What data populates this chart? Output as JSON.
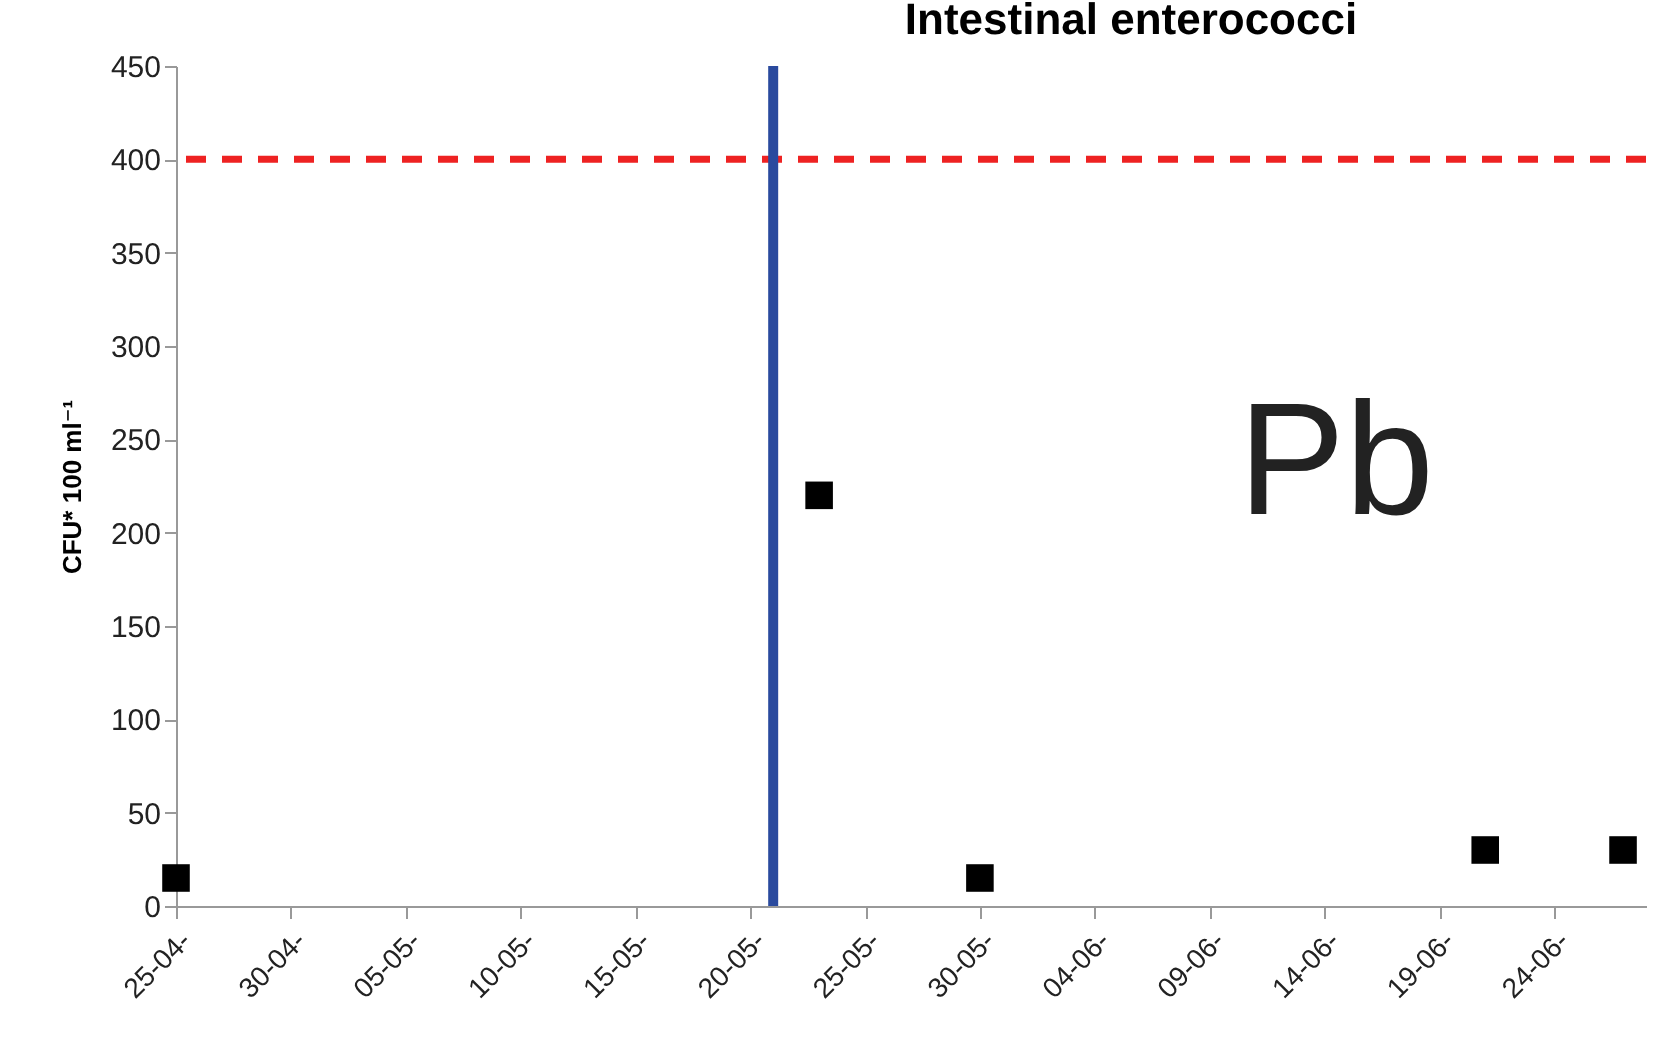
{
  "chart_data": {
    "type": "scatter",
    "title": "Intestinal enterococci",
    "ylabel": "CFU* 100 ml⁻¹",
    "annotations": [
      "Pb"
    ],
    "x": [
      "--04-25",
      "--05-23",
      "--05-30",
      "--06-21",
      "--06-27"
    ],
    "series": [
      {
        "color": "#000000",
        "values": [
          15,
          220,
          15,
          30,
          30
        ]
      }
    ],
    "marker": "square",
    "xlim": [
      "--04-25",
      "--06-28"
    ],
    "xticks": [
      {
        "value": "--04-25",
        "label": "25-04-"
      },
      {
        "value": "--04-30",
        "label": "30-04-"
      },
      {
        "value": "--05-05",
        "label": "05-05-"
      },
      {
        "value": "--05-10",
        "label": "10-05-"
      },
      {
        "value": "--05-15",
        "label": "15-05-"
      },
      {
        "value": "--05-20",
        "label": "20-05-"
      },
      {
        "value": "--05-25",
        "label": "25-05-"
      },
      {
        "value": "--05-30",
        "label": "30-05-"
      },
      {
        "value": "--06-04",
        "label": "04-06-"
      },
      {
        "value": "--06-09",
        "label": "09-06-"
      },
      {
        "value": "--06-14",
        "label": "14-06-"
      },
      {
        "value": "--06-19",
        "label": "19-06-"
      },
      {
        "value": "--06-24",
        "label": "24-06-"
      }
    ],
    "ylim": [
      0,
      450
    ],
    "yticks": [
      0,
      50,
      100,
      150,
      200,
      250,
      300,
      350,
      400,
      450
    ],
    "ref_lines": [
      {
        "axis": "y",
        "value": 400,
        "color": "#ee2222",
        "line_style": "dashed"
      },
      {
        "axis": "x",
        "value": "--05-21",
        "color": "#2a4a9e",
        "line_style": "solid"
      }
    ],
    "grid": false
  }
}
